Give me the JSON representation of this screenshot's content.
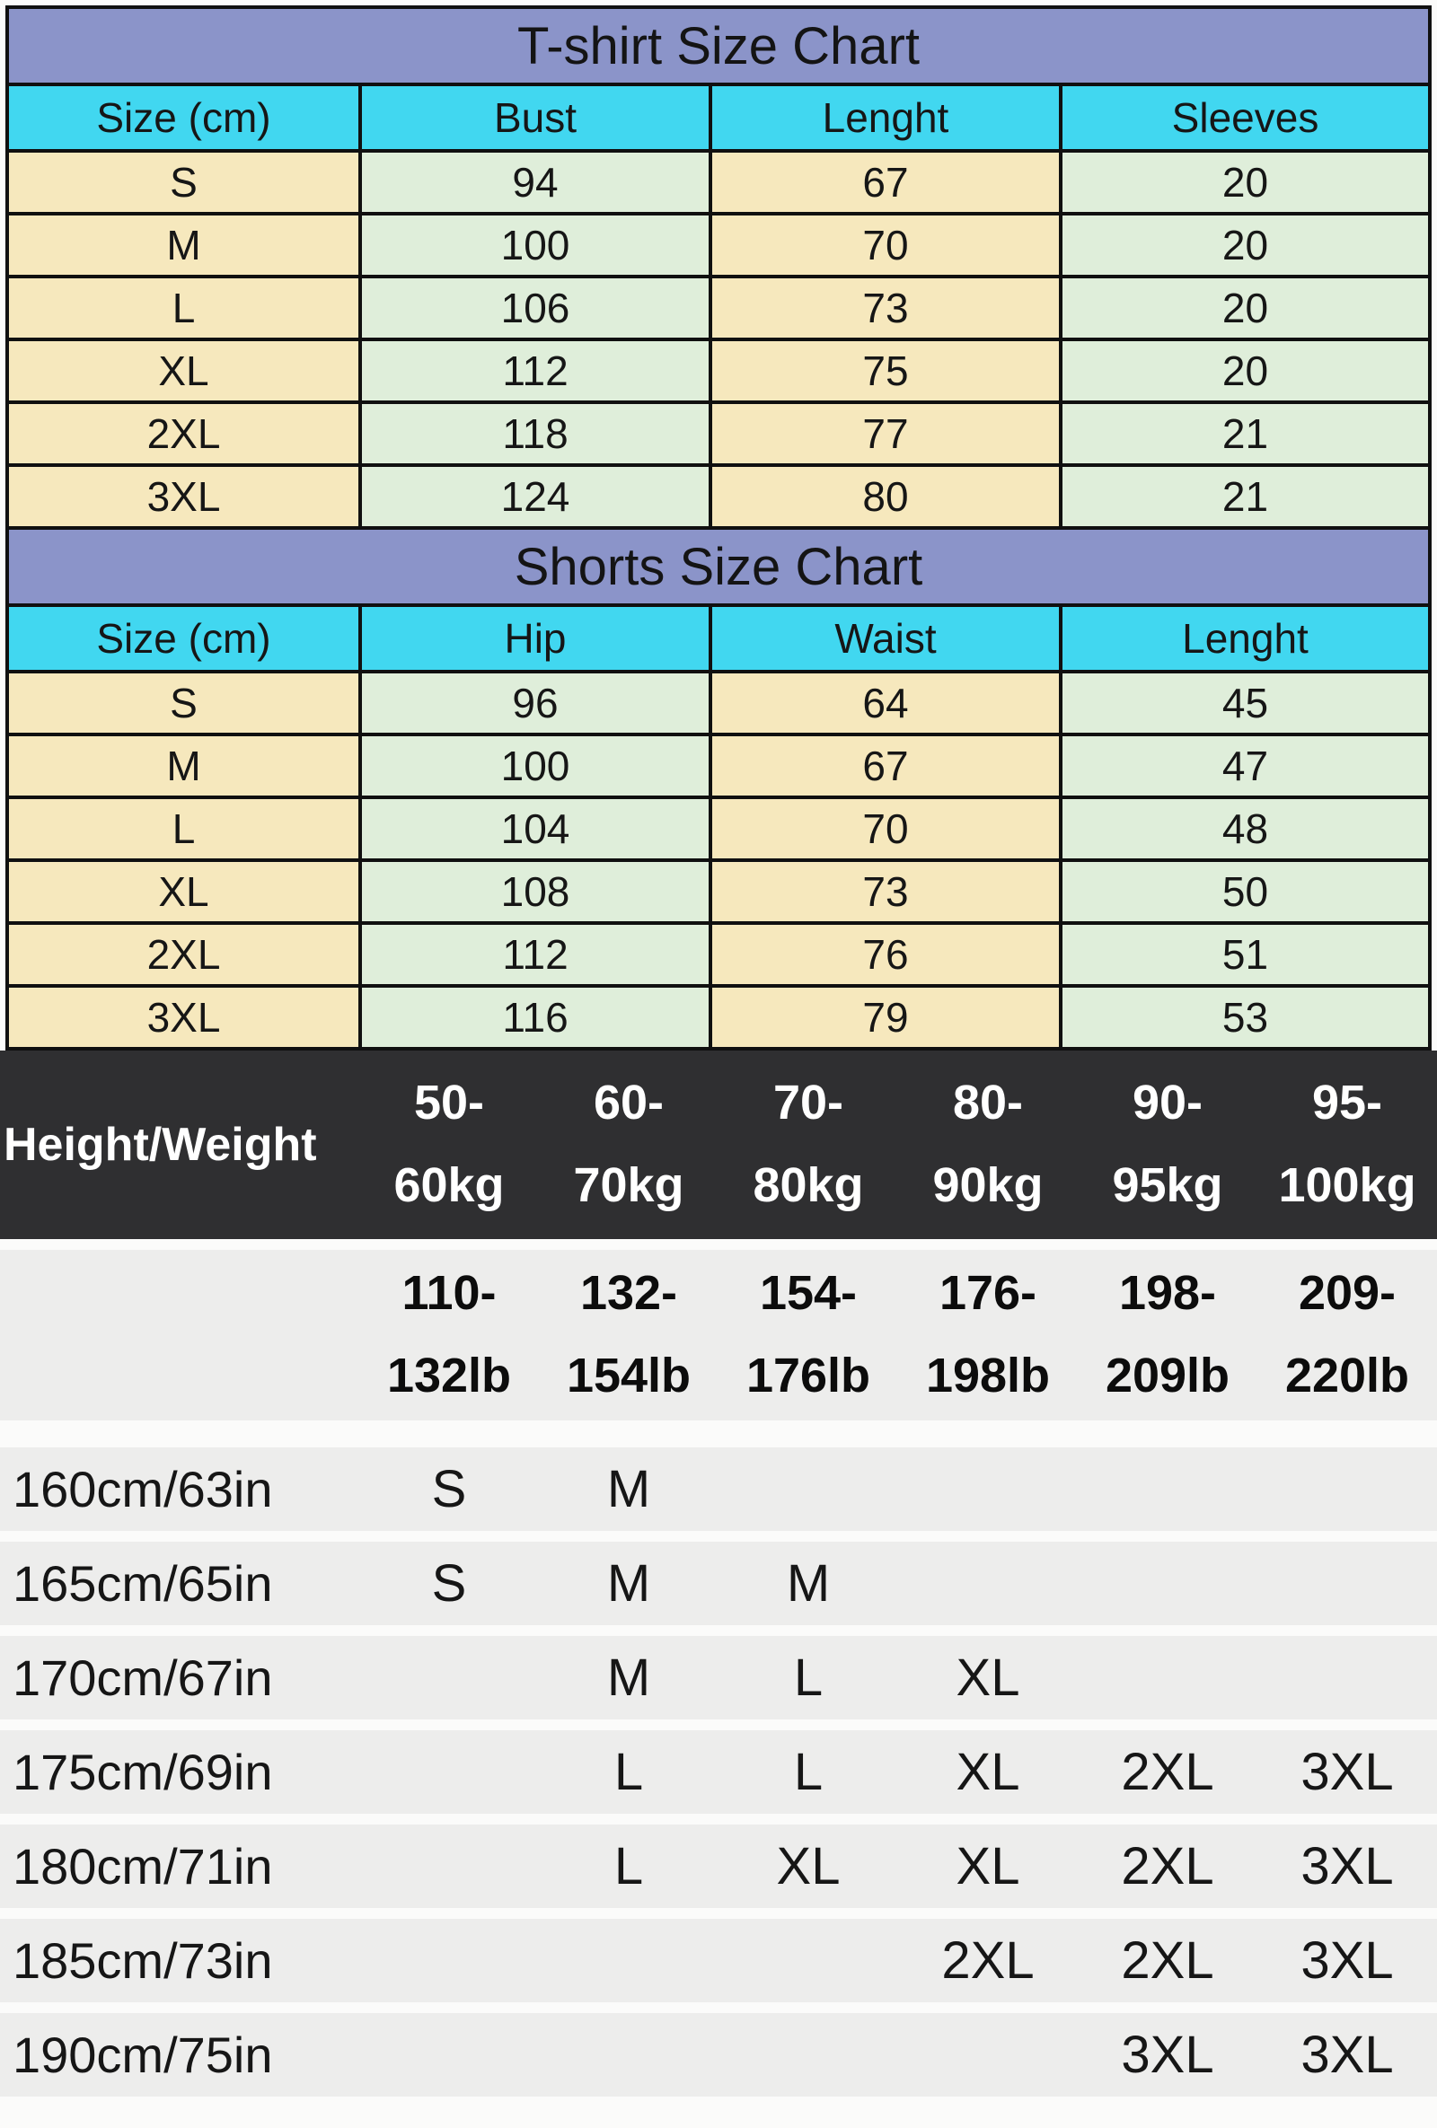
{
  "colors": {
    "title_band": "#8b94c9",
    "column_header": "#41d7f0",
    "cell_cream": "#f6e8bd",
    "cell_green": "#dfeeda",
    "dark_band": "#2f2f31",
    "gray_band": "#ededec",
    "border": "#101010"
  },
  "tshirt_chart": {
    "title": "T-shirt Size Chart",
    "columns": [
      "Size (cm)",
      "Bust",
      "Lenght",
      "Sleeves"
    ],
    "rows": [
      [
        "S",
        "94",
        "67",
        "20"
      ],
      [
        "M",
        "100",
        "70",
        "20"
      ],
      [
        "L",
        "106",
        "73",
        "20"
      ],
      [
        "XL",
        "112",
        "75",
        "20"
      ],
      [
        "2XL",
        "118",
        "77",
        "21"
      ],
      [
        "3XL",
        "124",
        "80",
        "21"
      ]
    ]
  },
  "shorts_chart": {
    "title": "Shorts Size Chart",
    "columns": [
      "Size (cm)",
      "Hip",
      "Waist",
      "Lenght"
    ],
    "rows": [
      [
        "S",
        "96",
        "64",
        "45"
      ],
      [
        "M",
        "100",
        "67",
        "47"
      ],
      [
        "L",
        "104",
        "70",
        "48"
      ],
      [
        "XL",
        "108",
        "73",
        "50"
      ],
      [
        "2XL",
        "112",
        "76",
        "51"
      ],
      [
        "3XL",
        "116",
        "79",
        "53"
      ]
    ]
  },
  "size_matrix": {
    "corner_label": "Height/Weight",
    "weight_kg": [
      [
        "50-",
        "60kg"
      ],
      [
        "60-",
        "70kg"
      ],
      [
        "70-",
        "80kg"
      ],
      [
        "80-",
        "90kg"
      ],
      [
        "90-",
        "95kg"
      ],
      [
        "95-",
        "100kg"
      ]
    ],
    "weight_lb": [
      [
        "110-",
        "132lb"
      ],
      [
        "132-",
        "154lb"
      ],
      [
        "154-",
        "176lb"
      ],
      [
        "176-",
        "198lb"
      ],
      [
        "198-",
        "209lb"
      ],
      [
        "209-",
        "220lb"
      ]
    ],
    "rows": [
      {
        "label": "160cm/63in",
        "cells": [
          "S",
          "M",
          "",
          "",
          "",
          ""
        ]
      },
      {
        "label": "165cm/65in",
        "cells": [
          "S",
          "M",
          "M",
          "",
          "",
          ""
        ]
      },
      {
        "label": "170cm/67in",
        "cells": [
          "",
          "M",
          "L",
          "XL",
          "",
          ""
        ]
      },
      {
        "label": "175cm/69in",
        "cells": [
          "",
          "L",
          "L",
          "XL",
          "2XL",
          "3XL"
        ]
      },
      {
        "label": "180cm/71in",
        "cells": [
          "",
          "L",
          "XL",
          "XL",
          "2XL",
          "3XL"
        ]
      },
      {
        "label": "185cm/73in",
        "cells": [
          "",
          "",
          "",
          "2XL",
          "2XL",
          "3XL"
        ]
      },
      {
        "label": "190cm/75in",
        "cells": [
          "",
          "",
          "",
          "",
          "3XL",
          "3XL"
        ]
      }
    ]
  }
}
